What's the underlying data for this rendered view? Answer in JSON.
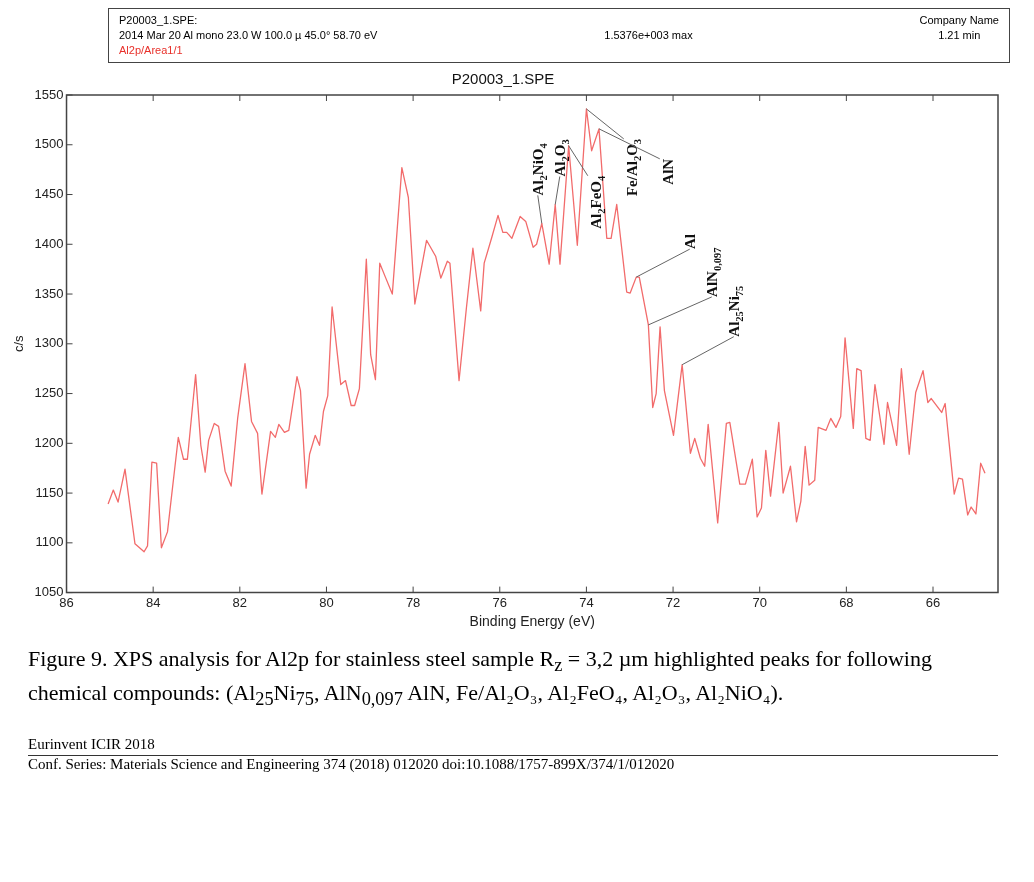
{
  "chart_data": {
    "type": "line",
    "title": "P20003_1.SPE",
    "xlabel": "Binding Energy (eV)",
    "ylabel": "c/s",
    "xlim": [
      86,
      64.5
    ],
    "xticks": [
      86,
      84,
      82,
      80,
      78,
      76,
      74,
      72,
      70,
      68,
      66
    ],
    "ylim": [
      1050,
      1550
    ],
    "yticks": [
      1050,
      1100,
      1150,
      1200,
      1250,
      1300,
      1350,
      1400,
      1450,
      1500,
      1550
    ],
    "grid": false,
    "legend": false,
    "marker": "none",
    "line_style": "solid",
    "series": [
      {
        "color": "#f26b6b",
        "x": [
          85.04,
          84.92,
          84.81,
          84.65,
          84.42,
          84.21,
          84.13,
          84.03,
          83.92,
          83.81,
          83.67,
          83.42,
          83.3,
          83.21,
          83.02,
          82.9,
          82.8,
          82.72,
          82.59,
          82.49,
          82.34,
          82.2,
          82.05,
          81.88,
          81.73,
          81.59,
          81.49,
          81.29,
          81.18,
          81.1,
          80.97,
          80.87,
          80.68,
          80.6,
          80.47,
          80.39,
          80.26,
          80.16,
          80.07,
          79.97,
          79.87,
          79.67,
          79.56,
          79.43,
          79.35,
          79.24,
          79.08,
          78.98,
          78.87,
          78.77,
          78.64,
          78.48,
          78.26,
          78.11,
          77.96,
          77.69,
          77.48,
          77.36,
          77.21,
          77.15,
          76.94,
          76.77,
          76.62,
          76.44,
          76.36,
          76.19,
          76.04,
          75.93,
          75.84,
          75.72,
          75.53,
          75.4,
          75.23,
          75.15,
          75.03,
          74.86,
          74.72,
          74.61,
          74.41,
          74.21,
          74,
          73.88,
          73.71,
          73.53,
          73.43,
          73.3,
          73.07,
          72.99,
          72.85,
          72.78,
          72.57,
          72.47,
          72.39,
          72.3,
          72.2,
          71.99,
          71.79,
          71.6,
          71.5,
          71.37,
          71.27,
          71.19,
          70.97,
          70.77,
          70.69,
          70.46,
          70.33,
          70.17,
          70.06,
          69.96,
          69.86,
          69.75,
          69.56,
          69.46,
          69.29,
          69.15,
          69.05,
          68.95,
          68.86,
          68.73,
          68.65,
          68.47,
          68.36,
          68.24,
          68.13,
          68.03,
          67.84,
          67.76,
          67.66,
          67.55,
          67.45,
          67.34,
          67.13,
          67.05,
          66.84,
          66.73,
          66.55,
          66.4,
          66.23,
          66.12,
          66.04,
          65.8,
          65.72,
          65.51,
          65.41,
          65.32,
          65.2,
          65.12,
          65.01,
          64.9,
          64.8
        ],
        "values": [
          1139,
          1153,
          1141,
          1174,
          1099,
          1091,
          1097,
          1181,
          1180,
          1095,
          1111,
          1206,
          1184,
          1184,
          1269,
          1198,
          1171,
          1203,
          1220,
          1217,
          1172,
          1157,
          1225,
          1280,
          1222,
          1210,
          1149,
          1212,
          1206,
          1219,
          1211,
          1213,
          1267,
          1253,
          1155,
          1189,
          1208,
          1198,
          1232,
          1248,
          1337,
          1259,
          1263,
          1238,
          1238,
          1255,
          1385,
          1289,
          1264,
          1381,
          1367,
          1350,
          1477,
          1447,
          1340,
          1404,
          1388,
          1366,
          1383,
          1381,
          1263,
          1336,
          1396,
          1333,
          1381,
          1406,
          1429,
          1412,
          1412,
          1406,
          1428,
          1423,
          1397,
          1400,
          1421,
          1380,
          1440,
          1380,
          1499,
          1399,
          1536,
          1494,
          1516,
          1406,
          1406,
          1440,
          1352,
          1351,
          1367,
          1367,
          1319,
          1236,
          1250,
          1317,
          1253,
          1208,
          1279,
          1190,
          1205,
          1185,
          1177,
          1219,
          1120,
          1220,
          1221,
          1159,
          1159,
          1184,
          1126,
          1135,
          1193,
          1147,
          1221,
          1150,
          1177,
          1121,
          1142,
          1197,
          1158,
          1163,
          1216,
          1213,
          1225,
          1216,
          1227,
          1306,
          1215,
          1275,
          1273,
          1205,
          1203,
          1259,
          1199,
          1241,
          1198,
          1275,
          1189,
          1251,
          1273,
          1241,
          1245,
          1231,
          1240,
          1149,
          1165,
          1164,
          1128,
          1136,
          1129,
          1180,
          1170
        ]
      }
    ],
    "annotations": [
      "P20003_1.SPE:",
      "2014 Mar 20  Al mono  23.0 W  100.0 µ  45.0°  58.70 eV",
      "Al2p/Area1/1",
      "1.5376e+003 max",
      "Company Name",
      "1.21 min",
      {
        "text": "Al$_{2}$NiO$_{4}$",
        "x": 75.03,
        "y": 1421
      },
      {
        "text": "Al$_{2}$O$_{3}$",
        "x": 74.72,
        "y": 1440
      },
      {
        "text": "Al$_{2}$FeO$_{4}$",
        "x": 74.41,
        "y": 1499
      },
      {
        "text": "Fe/Al$_{2}$O$_{3}$",
        "x": 74,
        "y": 1536
      },
      {
        "text": "AlN",
        "x": 73.71,
        "y": 1516
      },
      {
        "text": "Al",
        "x": 72.85,
        "y": 1367
      },
      {
        "text": "AlN$_{0,097}$",
        "x": 72.57,
        "y": 1319
      },
      {
        "text": "Al$_{25}$Ni$_{75}$",
        "x": 71.79,
        "y": 1279
      },
      "Figure 9. XPS analysis for Al2p for stainless steel sample R$_{z}$ = 3,2 µm highlighted peaks for following chemical compounds: (Al$_{25}$Ni$_{75}$, AlN$_{0,097}$ AlN, Fe/Al₂O₃, Al₂FeO₄, Al₂O₃, Al₂NiO₄).",
      "Eurinvent ICIR 2018",
      "Conf. Series: Materials Science and Engineering 374 (2018) 012020   doi:10.1088/1757-899X/374/1/012020"
    ]
  }
}
